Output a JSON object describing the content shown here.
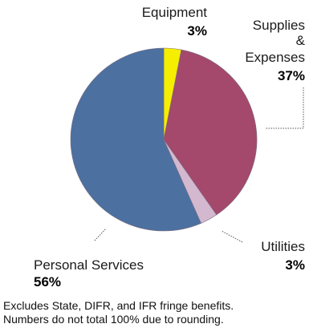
{
  "chart_data": {
    "type": "pie",
    "title": "",
    "slices": [
      {
        "label_lines": [
          "Equipment"
        ],
        "value": 3,
        "value_label": "3%",
        "color": "#f5ee00"
      },
      {
        "label_lines": [
          "Supplies",
          "&",
          "Expenses"
        ],
        "value": 37,
        "value_label": "37%",
        "color": "#a4486c"
      },
      {
        "label_lines": [
          "Utilities"
        ],
        "value": 3,
        "value_label": "3%",
        "color": "#d4b8d0"
      },
      {
        "label_lines": [
          "Personal Services"
        ],
        "value": 56,
        "value_label": "56%",
        "color": "#4c70a0"
      }
    ],
    "start_position": "top",
    "direction": "clockwise",
    "legend": "none"
  },
  "footnote": {
    "line1": "Excludes State, DIFR, and IFR fringe benefits.",
    "line2": "Numbers do not total 100% due to rounding."
  }
}
